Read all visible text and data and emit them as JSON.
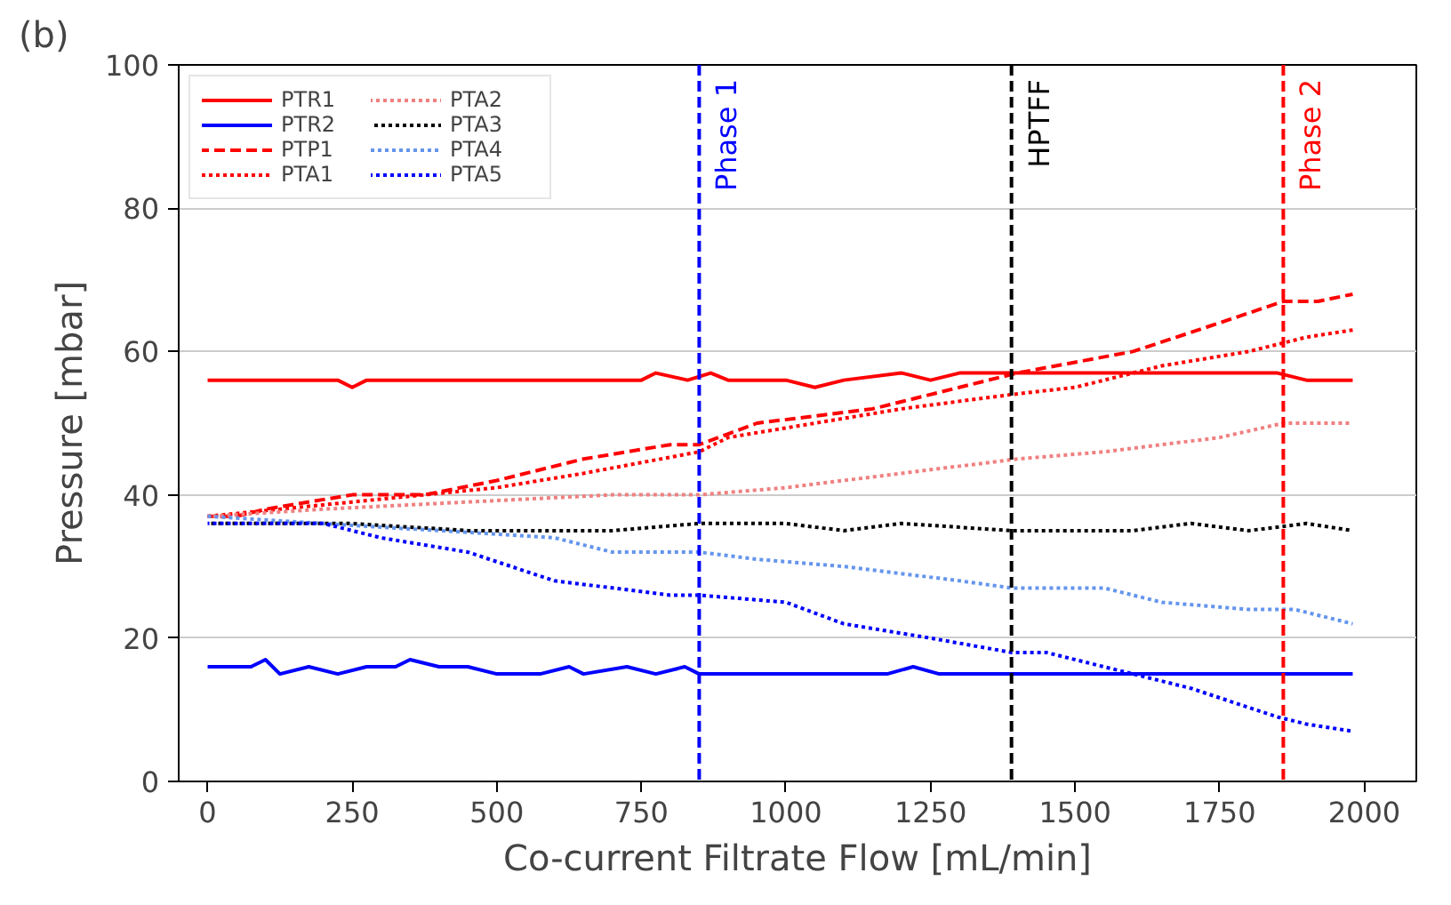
{
  "chart_data": {
    "type": "line",
    "xlabel": "Co-current Filtrate Flow [mL/min]",
    "ylabel": "Pressure [mbar]",
    "annotations": [
      "(b)"
    ],
    "xlim": [
      -50,
      2090
    ],
    "ylim": [
      0,
      100
    ],
    "xticks": [
      0,
      250,
      500,
      750,
      1000,
      1250,
      1500,
      1750,
      2000
    ],
    "yticks": [
      0,
      20,
      40,
      60,
      80,
      100
    ],
    "grid": "y",
    "legend": "top left",
    "series": [
      {
        "name": "PTR1",
        "color": "#ff0000",
        "line_style": "solid",
        "x": [
          0,
          225,
          250,
          275,
          750,
          775,
          830,
          870,
          900,
          1000,
          1050,
          1100,
          1200,
          1250,
          1300,
          1850,
          1900,
          1980
        ],
        "values": [
          56,
          56,
          55,
          56,
          56,
          57,
          56,
          57,
          56,
          56,
          55,
          56,
          57,
          56,
          57,
          57,
          56,
          56
        ]
      },
      {
        "name": "PTR2",
        "color": "#0000ff",
        "line_style": "solid",
        "x": [
          0,
          75,
          100,
          125,
          175,
          225,
          275,
          325,
          350,
          400,
          450,
          500,
          575,
          625,
          650,
          725,
          775,
          825,
          850,
          1175,
          1220,
          1265,
          1980
        ],
        "values": [
          16,
          16,
          17,
          15,
          16,
          15,
          16,
          16,
          17,
          16,
          16,
          15,
          15,
          16,
          15,
          16,
          15,
          16,
          15,
          15,
          16,
          15,
          15
        ]
      },
      {
        "name": "PTP1",
        "color": "#ff0000",
        "line_style": "dashed",
        "x": [
          0,
          50,
          100,
          250,
          375,
          500,
          650,
          800,
          850,
          950,
          1150,
          1400,
          1600,
          1750,
          1860,
          1920,
          1980
        ],
        "values": [
          37,
          37,
          38,
          40,
          40,
          42,
          45,
          47,
          47,
          50,
          52,
          57,
          60,
          64,
          67,
          67,
          68
        ]
      },
      {
        "name": "PTA1",
        "color": "#ff0000",
        "line_style": "dotted",
        "x": [
          0,
          250,
          500,
          650,
          850,
          900,
          1200,
          1390,
          1500,
          1650,
          1800,
          1900,
          1980
        ],
        "values": [
          37,
          39,
          41,
          43,
          46,
          48,
          52,
          54,
          55,
          58,
          60,
          62,
          63
        ]
      },
      {
        "name": "PTA2",
        "color": "#f08080",
        "line_style": "dotted",
        "x": [
          0,
          200,
          700,
          850,
          1000,
          1200,
          1400,
          1550,
          1750,
          1860,
          1980
        ],
        "values": [
          37,
          38,
          40,
          40,
          41,
          43,
          45,
          46,
          48,
          50,
          50
        ]
      },
      {
        "name": "PTA3",
        "color": "#000000",
        "line_style": "dotted",
        "x": [
          0,
          250,
          450,
          700,
          850,
          1000,
          1100,
          1200,
          1390,
          1600,
          1700,
          1800,
          1900,
          1980
        ],
        "values": [
          36,
          36,
          35,
          35,
          36,
          36,
          35,
          36,
          35,
          35,
          36,
          35,
          36,
          35
        ]
      },
      {
        "name": "PTA4",
        "color": "#6495ed",
        "line_style": "dotted",
        "x": [
          0,
          200,
          400,
          600,
          700,
          850,
          950,
          1100,
          1300,
          1390,
          1550,
          1650,
          1800,
          1880,
          1980
        ],
        "values": [
          37,
          36,
          35,
          34,
          32,
          32,
          31,
          30,
          28,
          27,
          27,
          25,
          24,
          24,
          22
        ]
      },
      {
        "name": "PTA5",
        "color": "#0000ff",
        "line_style": "dotted",
        "x": [
          0,
          200,
          300,
          450,
          600,
          800,
          850,
          1000,
          1100,
          1250,
          1390,
          1450,
          1600,
          1700,
          1850,
          1900,
          1980
        ],
        "values": [
          36,
          36,
          34,
          32,
          28,
          26,
          26,
          25,
          22,
          20,
          18,
          18,
          15,
          13,
          9,
          8,
          7
        ]
      }
    ],
    "ref_lines": [
      {
        "axis": "x",
        "value": 850,
        "label": "Phase 1",
        "color": "#0000ff",
        "line_style": "dashed"
      },
      {
        "axis": "x",
        "value": 1390,
        "label": "HPTFF",
        "color": "#000000",
        "line_style": "dashed"
      },
      {
        "axis": "x",
        "value": 1860,
        "label": "Phase 2",
        "color": "#ff0000",
        "line_style": "dashed"
      }
    ]
  }
}
